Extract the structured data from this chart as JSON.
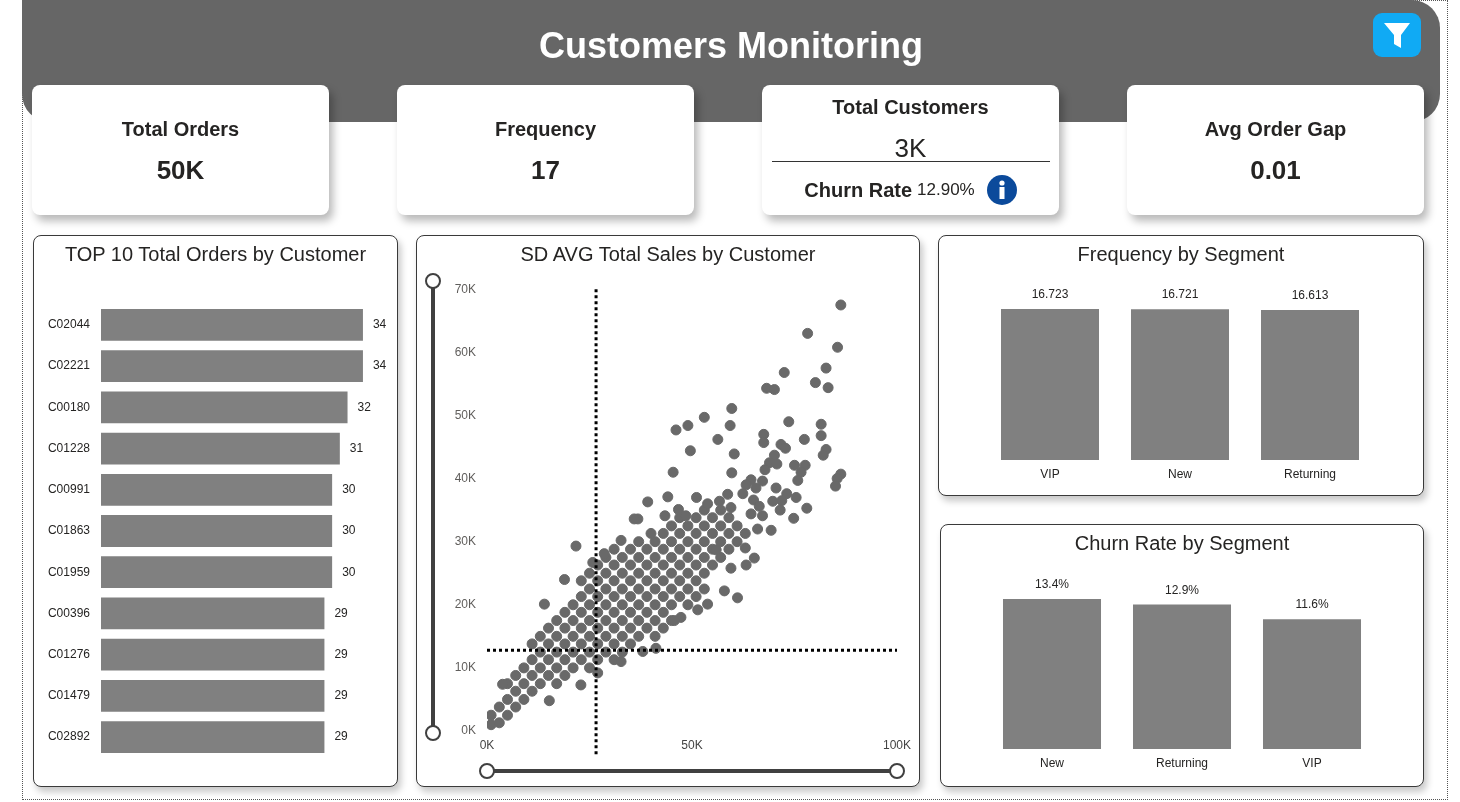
{
  "chart_data": [
    {
      "type": "other",
      "title": "Customers Monitoring",
      "annotations": [
        "Total Orders",
        "50K",
        "Frequency",
        "17",
        "Total Customers",
        "3K",
        "Churn Rate",
        "12.90%",
        "Avg Order Gap",
        "0.01"
      ]
    },
    {
      "type": "bar",
      "title": "TOP 10 Total Orders by Customer",
      "orientation": "horizontal",
      "categories": [
        "C02044",
        "C02221",
        "C00180",
        "C01228",
        "C00991",
        "C01863",
        "C01959",
        "C00396",
        "C01276",
        "C01479",
        "C02892"
      ],
      "values": [
        34,
        34,
        32,
        31,
        30,
        30,
        30,
        29,
        29,
        29,
        29
      ],
      "color": "#808080",
      "data_labels": true,
      "tick_labels": "y"
    },
    {
      "type": "scatter",
      "title": "SD AVG Total Sales by Customer",
      "color": "#696969",
      "marker": "circle",
      "x": [
        1000,
        1000,
        3000,
        3000,
        5000,
        5000,
        5000,
        7000,
        7000,
        7000,
        9000,
        9000,
        9000,
        11000,
        11000,
        11000,
        11000,
        13000,
        13000,
        13000,
        13000,
        15000,
        15000,
        15000,
        15000,
        17000,
        17000,
        17000,
        17000,
        17000,
        19000,
        19000,
        19000,
        19000,
        19000,
        21000,
        21000,
        21000,
        21000,
        21000,
        23000,
        23000,
        23000,
        23000,
        23000,
        23000,
        25000,
        25000,
        25000,
        25000,
        25000,
        25000,
        25000,
        27000,
        27000,
        27000,
        27000,
        27000,
        27000,
        27000,
        29000,
        29000,
        29000,
        29000,
        29000,
        29000,
        29000,
        31000,
        31000,
        31000,
        31000,
        31000,
        31000,
        31000,
        31000,
        33000,
        33000,
        33000,
        33000,
        33000,
        33000,
        33000,
        35000,
        35000,
        35000,
        35000,
        35000,
        35000,
        35000,
        37000,
        37000,
        37000,
        37000,
        37000,
        37000,
        37000,
        39000,
        39000,
        39000,
        39000,
        39000,
        39000,
        41000,
        41000,
        41000,
        41000,
        41000,
        41000,
        41000,
        43000,
        43000,
        43000,
        43000,
        43000,
        43000,
        43000,
        45000,
        45000,
        45000,
        45000,
        45000,
        45000,
        45000,
        47000,
        47000,
        47000,
        47000,
        47000,
        47000,
        49000,
        49000,
        49000,
        49000,
        49000,
        49000,
        51000,
        51000,
        51000,
        51000,
        51000,
        51000,
        53000,
        53000,
        53000,
        53000,
        53000,
        53000,
        55000,
        55000,
        55000,
        55000,
        57000,
        57000,
        57000,
        57000,
        59000,
        59000,
        59000,
        61000,
        61000,
        63000,
        86300,
        78200,
        85500,
        72500,
        82700,
        80100,
        83200,
        68200,
        70100,
        59700,
        53000,
        49000,
        46100,
        59300,
        73600,
        81500,
        81500,
        67500,
        67500,
        56300,
        77400,
        49600,
        60300,
        71700,
        72800,
        82700,
        82000,
        70100,
        68900,
        70700,
        67800,
        75000,
        77600,
        76600,
        75800,
        45400,
        59700,
        86300,
        85400,
        85000,
        64400,
        63200,
        65600,
        67200,
        70500,
        73100,
        62400,
        58700,
        44100,
        51100,
        39200,
        53800,
        56700,
        65000,
        69700,
        71900,
        75400,
        66400,
        78000,
        71500,
        46700,
        59500,
        36800,
        43400,
        48500,
        74800,
        67200,
        64400,
        21700,
        18900,
        14000,
        25800,
        61100,
        57900,
        53800,
        51400,
        47300,
        45700,
        41200,
        38000,
        32700,
        27000,
        22900,
        15200,
        3800,
        65200,
        69300,
        59500,
        63200,
        55900,
        35900,
        40000,
        32700,
        28600,
        66000,
        63000
      ],
      "values": [
        1000,
        2500,
        1300,
        3800,
        2500,
        5000,
        7500,
        3800,
        6300,
        8800,
        5000,
        7500,
        10000,
        6300,
        8800,
        11300,
        13800,
        7500,
        10000,
        12500,
        15000,
        8800,
        11300,
        13800,
        16300,
        7500,
        10000,
        12500,
        15000,
        17500,
        8800,
        11300,
        13800,
        16300,
        18800,
        10000,
        12500,
        15000,
        17500,
        20000,
        11300,
        13800,
        16300,
        18800,
        21300,
        23800,
        10000,
        12500,
        15000,
        17500,
        20000,
        22500,
        25000,
        11300,
        13800,
        16300,
        18800,
        21300,
        23800,
        26300,
        12500,
        15000,
        17500,
        20000,
        22500,
        25000,
        27500,
        11300,
        13800,
        16300,
        18800,
        21300,
        23800,
        26300,
        28800,
        12500,
        15000,
        17500,
        20000,
        22500,
        25000,
        27500,
        13800,
        16300,
        18800,
        21300,
        23800,
        26300,
        28800,
        15000,
        17500,
        20000,
        22500,
        25000,
        27500,
        30000,
        16300,
        18800,
        21300,
        23800,
        26300,
        28800,
        15000,
        17500,
        20000,
        22500,
        25000,
        27500,
        30000,
        16300,
        18800,
        21300,
        23800,
        26300,
        28800,
        31300,
        17500,
        20000,
        22500,
        25000,
        27500,
        30000,
        32500,
        21300,
        23800,
        26300,
        28800,
        31300,
        33800,
        20000,
        22500,
        25000,
        27500,
        30000,
        32500,
        21300,
        23800,
        26300,
        28800,
        31300,
        33800,
        22500,
        25000,
        27500,
        30000,
        32500,
        35000,
        26300,
        28800,
        31300,
        33800,
        27500,
        30000,
        32500,
        35000,
        28800,
        31300,
        33800,
        30000,
        32500,
        31300,
        67500,
        63000,
        60800,
        56800,
        57500,
        55200,
        54400,
        54300,
        54100,
        51100,
        49700,
        48400,
        47700,
        48400,
        49000,
        48600,
        46800,
        47000,
        45700,
        46200,
        46200,
        44400,
        43900,
        45400,
        44800,
        44600,
        43700,
        43700,
        42500,
        42300,
        41400,
        42100,
        42100,
        41000,
        39700,
        41000,
        40900,
        40700,
        40000,
        38800,
        39800,
        39000,
        38500,
        39600,
        38500,
        37600,
        37600,
        37500,
        37100,
        37000,
        36300,
        36000,
        36400,
        36600,
        36400,
        36500,
        37000,
        35600,
        35300,
        35000,
        35100,
        35400,
        33600,
        34100,
        34100,
        33700,
        34100,
        34400,
        29300,
        24000,
        20100,
        26700,
        21100,
        22200,
        20100,
        19200,
        18000,
        17500,
        13100,
        12600,
        11000,
        9200,
        7300,
        4800,
        7400,
        27400,
        31800,
        25800,
        26300,
        28700,
        33600,
        31300,
        30200,
        28100,
        32000,
        29000
      ],
      "xlim": [
        0,
        100000
      ],
      "ylim": [
        0,
        70000
      ],
      "xticks": [
        {
          "value": 0,
          "label": "0K"
        },
        {
          "value": 50000,
          "label": "50K"
        },
        {
          "value": 100000,
          "label": "100K"
        }
      ],
      "yticks": [
        {
          "value": 0,
          "label": "0K"
        },
        {
          "value": 10000,
          "label": "10K"
        },
        {
          "value": 20000,
          "label": "20K"
        },
        {
          "value": 30000,
          "label": "30K"
        },
        {
          "value": 40000,
          "label": "40K"
        },
        {
          "value": 50000,
          "label": "50K"
        },
        {
          "value": 60000,
          "label": "60K"
        },
        {
          "value": 70000,
          "label": "70K"
        }
      ],
      "ref_lines": [
        {
          "axis": "x",
          "value": 26600,
          "color": "#000000",
          "line_style": "dotted"
        },
        {
          "axis": "y",
          "value": 12800,
          "color": "#000000",
          "line_style": "dotted"
        }
      ]
    },
    {
      "type": "bar",
      "title": "Frequency by Segment",
      "categories": [
        "VIP",
        "New",
        "Returning"
      ],
      "values": [
        16.723,
        16.721,
        16.613
      ],
      "color": "#808080",
      "data_labels": true,
      "tick_labels": "x"
    },
    {
      "type": "bar",
      "title": "Churn Rate by Segment",
      "categories": [
        "New",
        "Returning",
        "VIP"
      ],
      "values": [
        13.4,
        12.9,
        11.6
      ],
      "value_labels": [
        "13.4%",
        "12.9%",
        "11.6%"
      ],
      "color": "#808080",
      "tick_labels": "x"
    }
  ]
}
